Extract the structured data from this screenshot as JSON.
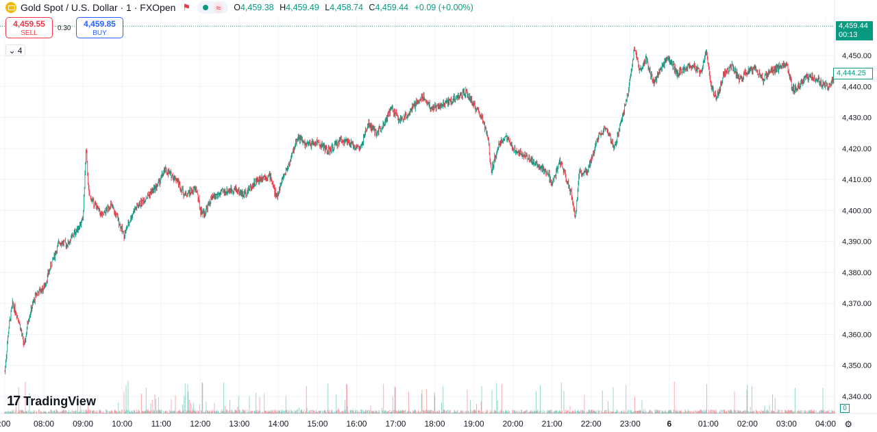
{
  "header": {
    "symbol_title": "Gold Spot / U.S. Dollar · 1 · FXOpen",
    "ohlc": [
      {
        "key": "O",
        "value": "4,459.38"
      },
      {
        "key": "H",
        "value": "4,459.49"
      },
      {
        "key": "L",
        "value": "4,458.74"
      },
      {
        "key": "C",
        "value": "4,459.44"
      }
    ],
    "change": "+0.09 (+0.00%)",
    "up_color": "#089981",
    "down_color": "#f23645"
  },
  "trade": {
    "sell_price": "4,459.55",
    "sell_label": "SELL",
    "spread": "0.30",
    "buy_price": "4,459.85",
    "buy_label": "BUY"
  },
  "indicator_toggle": "4",
  "price_tags": {
    "last_price": "4,459.44",
    "countdown": "00:13",
    "ma_value": "4,444.25",
    "volume_value": "0"
  },
  "branding": "TradingView",
  "chart_data": {
    "type": "candlestick",
    "ylim": [
      4340,
      4463
    ],
    "y_ticks": [
      "4,450.00",
      "4,440.00",
      "4,430.00",
      "4,420.00",
      "4,410.00",
      "4,400.00",
      "4,390.00",
      "4,380.00",
      "4,370.00",
      "4,360.00",
      "4,350.00",
      "4,340.00"
    ],
    "y_tick_values": [
      4450,
      4440,
      4430,
      4420,
      4410,
      4400,
      4390,
      4380,
      4370,
      4360,
      4350,
      4340
    ],
    "x_ticks": [
      ":00",
      "08:00",
      "09:00",
      "10:00",
      "11:00",
      "12:00",
      "13:00",
      "14:00",
      "15:00",
      "16:00",
      "17:00",
      "18:00",
      "19:00",
      "20:00",
      "21:00",
      "22:00",
      "23:00",
      "6",
      "01:00",
      "02:00",
      "03:00",
      "04:00"
    ],
    "x_tick_hours": [
      7,
      8,
      9,
      10,
      11,
      12,
      13,
      14,
      15,
      16,
      17,
      18,
      19,
      20,
      21,
      22,
      23,
      24,
      25,
      26,
      27,
      28
    ],
    "x_range_hours": [
      7.0,
      28.25
    ],
    "close_path": [
      [
        7.0,
        4348
      ],
      [
        7.1,
        4362
      ],
      [
        7.2,
        4370
      ],
      [
        7.35,
        4365
      ],
      [
        7.5,
        4356
      ],
      [
        7.6,
        4365
      ],
      [
        7.8,
        4373
      ],
      [
        8.0,
        4375
      ],
      [
        8.2,
        4383
      ],
      [
        8.4,
        4390
      ],
      [
        8.6,
        4389
      ],
      [
        8.8,
        4393
      ],
      [
        9.0,
        4397
      ],
      [
        9.08,
        4420
      ],
      [
        9.15,
        4405
      ],
      [
        9.3,
        4402
      ],
      [
        9.5,
        4398
      ],
      [
        9.7,
        4402
      ],
      [
        9.9,
        4397
      ],
      [
        10.05,
        4392
      ],
      [
        10.3,
        4400
      ],
      [
        10.6,
        4404
      ],
      [
        10.9,
        4408
      ],
      [
        11.1,
        4413
      ],
      [
        11.4,
        4410
      ],
      [
        11.6,
        4405
      ],
      [
        11.9,
        4407
      ],
      [
        12.0,
        4400
      ],
      [
        12.1,
        4399
      ],
      [
        12.3,
        4404
      ],
      [
        12.6,
        4406
      ],
      [
        12.9,
        4407
      ],
      [
        13.1,
        4405
      ],
      [
        13.4,
        4409
      ],
      [
        13.6,
        4411
      ],
      [
        13.8,
        4411
      ],
      [
        13.95,
        4404
      ],
      [
        14.1,
        4410
      ],
      [
        14.3,
        4416
      ],
      [
        14.5,
        4424
      ],
      [
        14.7,
        4421
      ],
      [
        15.0,
        4422
      ],
      [
        15.3,
        4419
      ],
      [
        15.6,
        4423
      ],
      [
        15.9,
        4421
      ],
      [
        16.1,
        4420
      ],
      [
        16.3,
        4428
      ],
      [
        16.5,
        4425
      ],
      [
        16.7,
        4428
      ],
      [
        16.9,
        4433
      ],
      [
        17.1,
        4429
      ],
      [
        17.3,
        4431
      ],
      [
        17.5,
        4434
      ],
      [
        17.7,
        4437
      ],
      [
        17.9,
        4433
      ],
      [
        18.2,
        4434
      ],
      [
        18.5,
        4436
      ],
      [
        18.8,
        4438
      ],
      [
        19.0,
        4434
      ],
      [
        19.2,
        4430
      ],
      [
        19.35,
        4424
      ],
      [
        19.45,
        4413
      ],
      [
        19.6,
        4420
      ],
      [
        19.8,
        4424
      ],
      [
        20.0,
        4420
      ],
      [
        20.3,
        4418
      ],
      [
        20.6,
        4415
      ],
      [
        20.9,
        4412
      ],
      [
        21.0,
        4408
      ],
      [
        21.2,
        4416
      ],
      [
        21.35,
        4411
      ],
      [
        21.5,
        4405
      ],
      [
        21.6,
        4398
      ],
      [
        21.7,
        4412
      ],
      [
        21.9,
        4413
      ],
      [
        22.05,
        4418
      ],
      [
        22.2,
        4425
      ],
      [
        22.4,
        4426
      ],
      [
        22.6,
        4420
      ],
      [
        22.8,
        4430
      ],
      [
        22.95,
        4438
      ],
      [
        23.1,
        4452
      ],
      [
        23.25,
        4445
      ],
      [
        23.4,
        4449
      ],
      [
        23.6,
        4441
      ],
      [
        23.8,
        4446
      ],
      [
        24.0,
        4449
      ],
      [
        24.2,
        4444
      ],
      [
        24.4,
        4446
      ],
      [
        24.6,
        4447
      ],
      [
        24.8,
        4444
      ],
      [
        24.95,
        4452
      ],
      [
        25.05,
        4441
      ],
      [
        25.2,
        4436
      ],
      [
        25.4,
        4444
      ],
      [
        25.6,
        4447
      ],
      [
        25.8,
        4442
      ],
      [
        26.0,
        4445
      ],
      [
        26.2,
        4446
      ],
      [
        26.4,
        4442
      ],
      [
        26.6,
        4445
      ],
      [
        26.8,
        4446
      ],
      [
        27.0,
        4448
      ],
      [
        27.15,
        4439
      ],
      [
        27.3,
        4440
      ],
      [
        27.5,
        4443
      ],
      [
        27.7,
        4443
      ],
      [
        27.9,
        4441
      ],
      [
        28.1,
        4440
      ],
      [
        28.25,
        4444
      ]
    ],
    "moving_average": {
      "value": 4444.25,
      "color": "#089981"
    },
    "last_price": 4459.44,
    "volume": {
      "relative_range": [
        0,
        1
      ],
      "note_color_up": "#089981",
      "note_color_down": "#f23645"
    }
  }
}
